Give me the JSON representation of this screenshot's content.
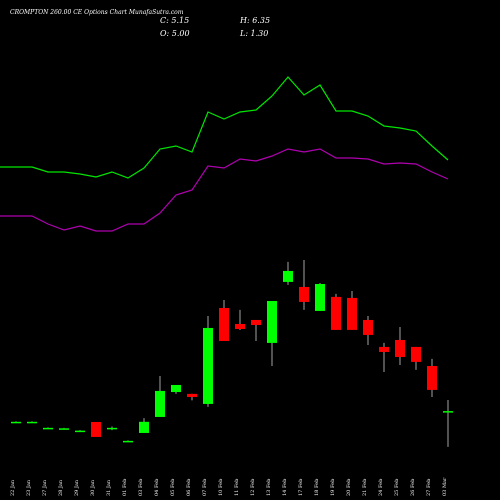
{
  "chart_data": {
    "type": "candlestick",
    "title": "CROMPTON 260.00 CE Options Chart MunafaSutra.com",
    "info": [
      "C: 5.15",
      "H: 6.35",
      "O: 5.00",
      "L: 1.30"
    ],
    "categories": [
      "22 Jan",
      "23 Jan",
      "27 Jan",
      "28 Jan",
      "29 Jan",
      "30 Jan",
      "31 Jan",
      "01 Feb",
      "03 Feb",
      "04 Feb",
      "05 Feb",
      "06 Feb",
      "07 Feb",
      "10 Feb",
      "11 Feb",
      "12 Feb",
      "13 Feb",
      "14 Feb",
      "17 Feb",
      "18 Feb",
      "19 Feb",
      "20 Feb",
      "21 Feb",
      "24 Feb",
      "25 Feb",
      "26 Feb",
      "27 Feb",
      "03 Mar"
    ],
    "open": [
      3.95,
      3.95,
      3.3,
      3.25,
      3.0,
      3.98,
      3.3,
      1.9,
      2.8,
      4.52,
      7.2,
      7.0,
      5.92,
      16.24,
      14.52,
      14.95,
      12.48,
      19.04,
      18.5,
      15.92,
      17.43,
      17.32,
      14.95,
      12.05,
      12.8,
      12.05,
      10.0,
      5.0
    ],
    "high": [
      4.05,
      4.05,
      3.4,
      3.35,
      3.1,
      3.98,
      3.5,
      2.0,
      4.4,
      8.93,
      7.96,
      7.0,
      15.38,
      17.1,
      16.03,
      14.95,
      16.99,
      21.19,
      21.4,
      18.93,
      17.75,
      18.07,
      15.38,
      12.48,
      14.2,
      12.05,
      10.76,
      6.35
    ],
    "low": [
      3.9,
      3.9,
      3.25,
      3.2,
      2.95,
      2.37,
      3.1,
      1.85,
      2.8,
      4.52,
      7.0,
      6.3,
      5.6,
      12.69,
      13.87,
      12.69,
      10.0,
      18.72,
      16.03,
      15.92,
      13.88,
      13.88,
      12.26,
      9.36,
      10.11,
      9.58,
      6.67,
      1.3
    ],
    "close": [
      4.0,
      4.0,
      3.35,
      3.3,
      3.05,
      2.37,
      3.35,
      1.95,
      4.0,
      7.32,
      7.96,
      6.67,
      14.09,
      12.69,
      13.98,
      14.41,
      16.99,
      20.22,
      16.89,
      18.82,
      13.88,
      13.88,
      13.34,
      11.51,
      10.97,
      10.44,
      7.43,
      5.15
    ],
    "up_color": "#00ff00",
    "down_color": "#ff0000",
    "ylim": [
      0,
      25
    ],
    "lines": [
      {
        "color": "#00e600",
        "axis": "y2",
        "values": [
          83,
          83,
          78,
          78,
          76,
          73,
          78,
          72,
          82,
          101,
          104,
          98,
          138,
          131,
          138,
          140,
          154,
          173,
          155,
          165,
          139,
          139,
          134,
          124,
          122,
          119,
          104,
          90
        ]
      },
      {
        "color": "#b000b0",
        "axis": "y2",
        "values": [
          34,
          34,
          26,
          20,
          24,
          19,
          19,
          26,
          26,
          37,
          55,
          60,
          84,
          82,
          91,
          89,
          94,
          101,
          98,
          101,
          92,
          92,
          91,
          86,
          87,
          86,
          78,
          71
        ]
      }
    ],
    "y2lim": [
      0,
      250
    ]
  }
}
